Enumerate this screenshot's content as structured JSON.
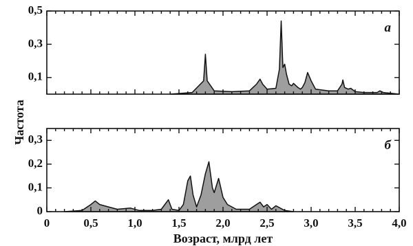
{
  "chart_data": {
    "type": "area",
    "ylabel": "Частота",
    "xlabel": "Возраст, млрд лет",
    "xlim": [
      0,
      4.0
    ],
    "x_ticks": [
      "0",
      "0,5",
      "1,0",
      "1,5",
      "2,0",
      "2,5",
      "3,0",
      "3,5",
      "4,0"
    ],
    "panels": [
      {
        "label": "а",
        "ylim": [
          0,
          0.5
        ],
        "y_ticks": [
          "0,5",
          "0,3",
          "0,1"
        ],
        "series": [
          {
            "x": [
              1.4,
              1.65,
              1.78,
              1.8,
              1.82,
              1.9,
              2.1,
              2.3,
              2.38,
              2.42,
              2.45,
              2.5,
              2.6,
              2.64,
              2.66,
              2.68,
              2.7,
              2.72,
              2.75,
              2.78,
              2.8,
              2.85,
              2.88,
              2.9,
              2.93,
              2.96,
              3.0,
              3.05,
              3.2,
              3.3,
              3.35,
              3.36,
              3.38,
              3.42,
              3.45,
              3.5,
              3.6,
              3.75,
              3.78,
              3.82,
              4.0
            ],
            "y": [
              0.0,
              0.01,
              0.08,
              0.24,
              0.08,
              0.02,
              0.015,
              0.02,
              0.06,
              0.09,
              0.06,
              0.03,
              0.035,
              0.15,
              0.44,
              0.16,
              0.18,
              0.12,
              0.06,
              0.05,
              0.065,
              0.04,
              0.03,
              0.04,
              0.07,
              0.13,
              0.08,
              0.03,
              0.02,
              0.02,
              0.06,
              0.085,
              0.04,
              0.03,
              0.035,
              0.015,
              0.01,
              0.01,
              0.02,
              0.01,
              0.0
            ]
          }
        ]
      },
      {
        "label": "б",
        "ylim": [
          0,
          0.35
        ],
        "y_ticks": [
          "0,3",
          "0,2",
          "0,1",
          "0"
        ],
        "series": [
          {
            "x": [
              0.2,
              0.4,
              0.5,
              0.55,
              0.6,
              0.7,
              0.8,
              0.95,
              1.05,
              1.2,
              1.3,
              1.38,
              1.42,
              1.5,
              1.55,
              1.6,
              1.63,
              1.66,
              1.7,
              1.75,
              1.8,
              1.84,
              1.88,
              1.9,
              1.95,
              2.0,
              2.05,
              2.15,
              2.3,
              2.38,
              2.42,
              2.46,
              2.5,
              2.55,
              2.6,
              2.7,
              2.8
            ],
            "y": [
              0.0,
              0.005,
              0.03,
              0.045,
              0.03,
              0.02,
              0.01,
              0.015,
              0.005,
              0.005,
              0.01,
              0.05,
              0.01,
              0.005,
              0.03,
              0.13,
              0.15,
              0.07,
              0.02,
              0.07,
              0.16,
              0.21,
              0.1,
              0.08,
              0.14,
              0.06,
              0.03,
              0.01,
              0.01,
              0.03,
              0.04,
              0.02,
              0.03,
              0.01,
              0.025,
              0.005,
              0.0
            ]
          }
        ]
      }
    ]
  }
}
